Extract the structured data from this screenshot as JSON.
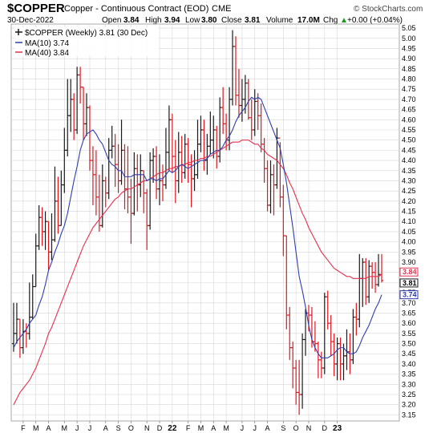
{
  "header": {
    "symbol": "$COPPER",
    "description": "Copper - Continuous Contract (EOD)",
    "exchange": "CME",
    "date": "30-Dec-2022",
    "open_label": "Open",
    "open_value": "3.84",
    "high_label": "High",
    "high_value": "3.94",
    "low_label": "Low",
    "low_value": "3.80",
    "close_label": "Close",
    "close_value": "3.81",
    "volume_label": "Volume",
    "volume_value": "17.0M",
    "chg_label": "Chg",
    "chg_value": "+0.00 (+0.04%)",
    "chg_arrow": "▲",
    "watermark": "© StockCharts.com"
  },
  "legend": {
    "price": "$COPPER (Weekly) 3.81 (30 Dec)",
    "ma10": "MA(10) 3.74",
    "ma40": "MA(40) 3.84"
  },
  "badges": {
    "ma40": "3.84",
    "close": "3.81",
    "ma10": "3.74"
  },
  "colors": {
    "up": "#1a1a1a",
    "down": "#e0161f",
    "ma10": "#2d3eb0",
    "ma40": "#e5304f",
    "grid": "#d6d6d6"
  },
  "chart_data": {
    "type": "ohlc",
    "title": "$COPPER Copper - Continuous Contract (EOD) CME",
    "interval": "weekly",
    "ylim": [
      3.12,
      5.07
    ],
    "y_ticks": [
      3.15,
      3.2,
      3.25,
      3.3,
      3.35,
      3.4,
      3.45,
      3.5,
      3.55,
      3.6,
      3.65,
      3.7,
      3.75,
      3.8,
      3.85,
      3.9,
      3.95,
      4.0,
      4.05,
      4.1,
      4.15,
      4.2,
      4.25,
      4.3,
      4.35,
      4.4,
      4.45,
      4.5,
      4.55,
      4.6,
      4.65,
      4.7,
      4.75,
      4.8,
      4.85,
      4.9,
      4.95,
      5.0,
      5.05
    ],
    "x_labels": [
      {
        "label": "F",
        "week": 3
      },
      {
        "label": "M",
        "week": 7
      },
      {
        "label": "A",
        "week": 11
      },
      {
        "label": "M",
        "week": 16
      },
      {
        "label": "J",
        "week": 20
      },
      {
        "label": "J",
        "week": 24
      },
      {
        "label": "A",
        "week": 29
      },
      {
        "label": "S",
        "week": 33
      },
      {
        "label": "O",
        "week": 37
      },
      {
        "label": "N",
        "week": 42
      },
      {
        "label": "D",
        "week": 46
      },
      {
        "label": "22",
        "week": 50,
        "bold": true
      },
      {
        "label": "F",
        "week": 55
      },
      {
        "label": "M",
        "week": 59
      },
      {
        "label": "A",
        "week": 63
      },
      {
        "label": "M",
        "week": 67
      },
      {
        "label": "J",
        "week": 72
      },
      {
        "label": "J",
        "week": 76
      },
      {
        "label": "A",
        "week": 80
      },
      {
        "label": "S",
        "week": 85
      },
      {
        "label": "O",
        "week": 89
      },
      {
        "label": "N",
        "week": 93
      },
      {
        "label": "D",
        "week": 98
      },
      {
        "label": "23",
        "week": 102,
        "bold": true
      }
    ],
    "closes": [
      3.55,
      3.62,
      3.48,
      3.56,
      3.55,
      3.63,
      3.78,
      3.98,
      4.12,
      4.05,
      4.1,
      3.95,
      4.01,
      4.2,
      4.08,
      4.28,
      4.45,
      4.62,
      4.7,
      4.55,
      4.82,
      4.76,
      4.58,
      4.66,
      4.4,
      4.33,
      4.22,
      4.08,
      4.3,
      4.24,
      4.45,
      4.47,
      4.38,
      4.3,
      4.45,
      4.26,
      4.22,
      4.14,
      4.36,
      4.28,
      4.35,
      4.24,
      4.08,
      4.4,
      4.42,
      4.26,
      4.3,
      4.28,
      4.44,
      4.6,
      4.42,
      4.3,
      4.44,
      4.34,
      4.48,
      4.38,
      4.31,
      4.33,
      4.48,
      4.55,
      4.4,
      4.47,
      4.5,
      4.55,
      4.42,
      4.66,
      4.58,
      4.5,
      4.7,
      4.96,
      4.72,
      4.67,
      4.7,
      4.78,
      4.61,
      4.55,
      4.69,
      4.62,
      4.48,
      4.36,
      4.18,
      4.33,
      4.28,
      4.51,
      4.22,
      4.03,
      3.64,
      3.48,
      3.38,
      3.26,
      3.25,
      3.52,
      3.65,
      3.64,
      3.51,
      3.5,
      3.42,
      3.38,
      3.73,
      3.6,
      3.51,
      3.4,
      3.5,
      3.4,
      3.44,
      3.46,
      3.42,
      3.63,
      3.62,
      3.82,
      3.9,
      3.73,
      3.88,
      3.85,
      3.79,
      3.84,
      3.81
    ],
    "highs": [
      3.7,
      3.7,
      3.62,
      3.62,
      3.6,
      3.8,
      3.84,
      4.04,
      4.18,
      4.17,
      4.15,
      4.1,
      4.14,
      4.37,
      4.32,
      4.35,
      4.56,
      4.8,
      4.8,
      4.73,
      4.86,
      4.86,
      4.76,
      4.73,
      4.67,
      4.47,
      4.45,
      4.33,
      4.38,
      4.32,
      4.51,
      4.57,
      4.53,
      4.48,
      4.6,
      4.48,
      4.47,
      4.31,
      4.44,
      4.43,
      4.43,
      4.35,
      4.26,
      4.44,
      4.46,
      4.47,
      4.43,
      4.38,
      4.56,
      4.67,
      4.63,
      4.5,
      4.54,
      4.52,
      4.53,
      4.51,
      4.43,
      4.45,
      4.6,
      4.62,
      4.6,
      4.53,
      4.64,
      4.62,
      4.57,
      4.71,
      4.76,
      4.63,
      4.76,
      5.04,
      5.01,
      4.85,
      4.8,
      4.82,
      4.8,
      4.7,
      4.75,
      4.73,
      4.68,
      4.51,
      4.4,
      4.4,
      4.38,
      4.56,
      4.49,
      4.28,
      4.03,
      3.68,
      3.51,
      3.42,
      3.42,
      3.55,
      3.67,
      3.69,
      3.68,
      3.61,
      3.51,
      3.46,
      3.75,
      3.76,
      3.64,
      3.55,
      3.53,
      3.53,
      3.5,
      3.57,
      3.55,
      3.67,
      3.7,
      3.94,
      3.92,
      3.92,
      3.91,
      3.9,
      3.9,
      3.94,
      3.94
    ],
    "lows": [
      3.46,
      3.5,
      3.43,
      3.45,
      3.48,
      3.52,
      3.62,
      3.78,
      3.96,
      3.98,
      3.96,
      3.86,
      3.91,
      4.0,
      4.04,
      4.08,
      4.24,
      4.42,
      4.54,
      4.5,
      4.53,
      4.68,
      4.5,
      4.52,
      4.35,
      4.18,
      4.13,
      4.05,
      4.07,
      4.17,
      4.21,
      4.41,
      4.27,
      4.24,
      4.28,
      4.16,
      4.14,
      3.99,
      4.13,
      4.15,
      4.22,
      4.14,
      3.96,
      4.06,
      4.29,
      4.21,
      4.18,
      4.2,
      4.26,
      4.35,
      4.34,
      4.19,
      4.24,
      4.29,
      4.31,
      4.29,
      4.17,
      4.25,
      4.31,
      4.44,
      4.35,
      4.33,
      4.43,
      4.41,
      4.36,
      4.39,
      4.53,
      4.45,
      4.45,
      4.67,
      4.67,
      4.61,
      4.59,
      4.63,
      4.6,
      4.5,
      4.52,
      4.55,
      4.44,
      4.29,
      4.15,
      4.14,
      4.13,
      4.26,
      4.17,
      3.93,
      3.57,
      3.42,
      3.28,
      3.2,
      3.15,
      3.18,
      3.44,
      3.56,
      3.48,
      3.46,
      3.33,
      3.33,
      3.35,
      3.57,
      3.44,
      3.34,
      3.32,
      3.32,
      3.32,
      3.37,
      3.35,
      3.4,
      3.54,
      3.58,
      3.68,
      3.69,
      3.7,
      3.77,
      3.75,
      3.78,
      3.8
    ],
    "ma10": [
      3.48,
      3.51,
      3.53,
      3.55,
      3.57,
      3.6,
      3.62,
      3.64,
      3.69,
      3.73,
      3.79,
      3.86,
      3.9,
      3.95,
      3.99,
      4.04,
      4.08,
      4.14,
      4.22,
      4.3,
      4.37,
      4.45,
      4.5,
      4.53,
      4.54,
      4.55,
      4.53,
      4.5,
      4.48,
      4.44,
      4.4,
      4.38,
      4.37,
      4.35,
      4.35,
      4.32,
      4.32,
      4.32,
      4.33,
      4.33,
      4.33,
      4.33,
      4.3,
      4.31,
      4.31,
      4.3,
      4.31,
      4.31,
      4.33,
      4.35,
      4.34,
      4.35,
      4.37,
      4.38,
      4.37,
      4.36,
      4.37,
      4.38,
      4.39,
      4.4,
      4.4,
      4.41,
      4.43,
      4.44,
      4.45,
      4.45,
      4.47,
      4.5,
      4.52,
      4.55,
      4.59,
      4.62,
      4.64,
      4.66,
      4.69,
      4.71,
      4.7,
      4.71,
      4.7,
      4.66,
      4.62,
      4.58,
      4.54,
      4.5,
      4.46,
      4.38,
      4.29,
      4.18,
      4.07,
      3.95,
      3.83,
      3.76,
      3.68,
      3.59,
      3.52,
      3.48,
      3.45,
      3.43,
      3.43,
      3.43,
      3.44,
      3.45,
      3.47,
      3.48,
      3.48,
      3.46,
      3.45,
      3.45,
      3.46,
      3.49,
      3.53,
      3.56,
      3.59,
      3.63,
      3.67,
      3.7,
      3.74
    ],
    "ma40": [
      3.2,
      3.23,
      3.26,
      3.28,
      3.3,
      3.32,
      3.35,
      3.38,
      3.42,
      3.46,
      3.5,
      3.55,
      3.58,
      3.62,
      3.66,
      3.7,
      3.74,
      3.78,
      3.82,
      3.86,
      3.9,
      3.94,
      3.98,
      4.01,
      4.04,
      4.07,
      4.09,
      4.11,
      4.13,
      4.15,
      4.17,
      4.19,
      4.21,
      4.22,
      4.24,
      4.25,
      4.26,
      4.26,
      4.27,
      4.28,
      4.29,
      4.3,
      4.3,
      4.31,
      4.32,
      4.33,
      4.34,
      4.34,
      4.35,
      4.36,
      4.36,
      4.37,
      4.37,
      4.38,
      4.38,
      4.39,
      4.39,
      4.4,
      4.4,
      4.41,
      4.41,
      4.42,
      4.42,
      4.43,
      4.44,
      4.45,
      4.46,
      4.47,
      4.48,
      4.49,
      4.49,
      4.49,
      4.5,
      4.5,
      4.5,
      4.49,
      4.48,
      4.48,
      4.46,
      4.45,
      4.43,
      4.42,
      4.41,
      4.4,
      4.38,
      4.36,
      4.33,
      4.29,
      4.26,
      4.22,
      4.18,
      4.14,
      4.11,
      4.07,
      4.04,
      4.01,
      3.98,
      3.95,
      3.93,
      3.91,
      3.89,
      3.87,
      3.86,
      3.85,
      3.84,
      3.83,
      3.83,
      3.82,
      3.82,
      3.82,
      3.82,
      3.82,
      3.83,
      3.83,
      3.83,
      3.83,
      3.84
    ]
  }
}
